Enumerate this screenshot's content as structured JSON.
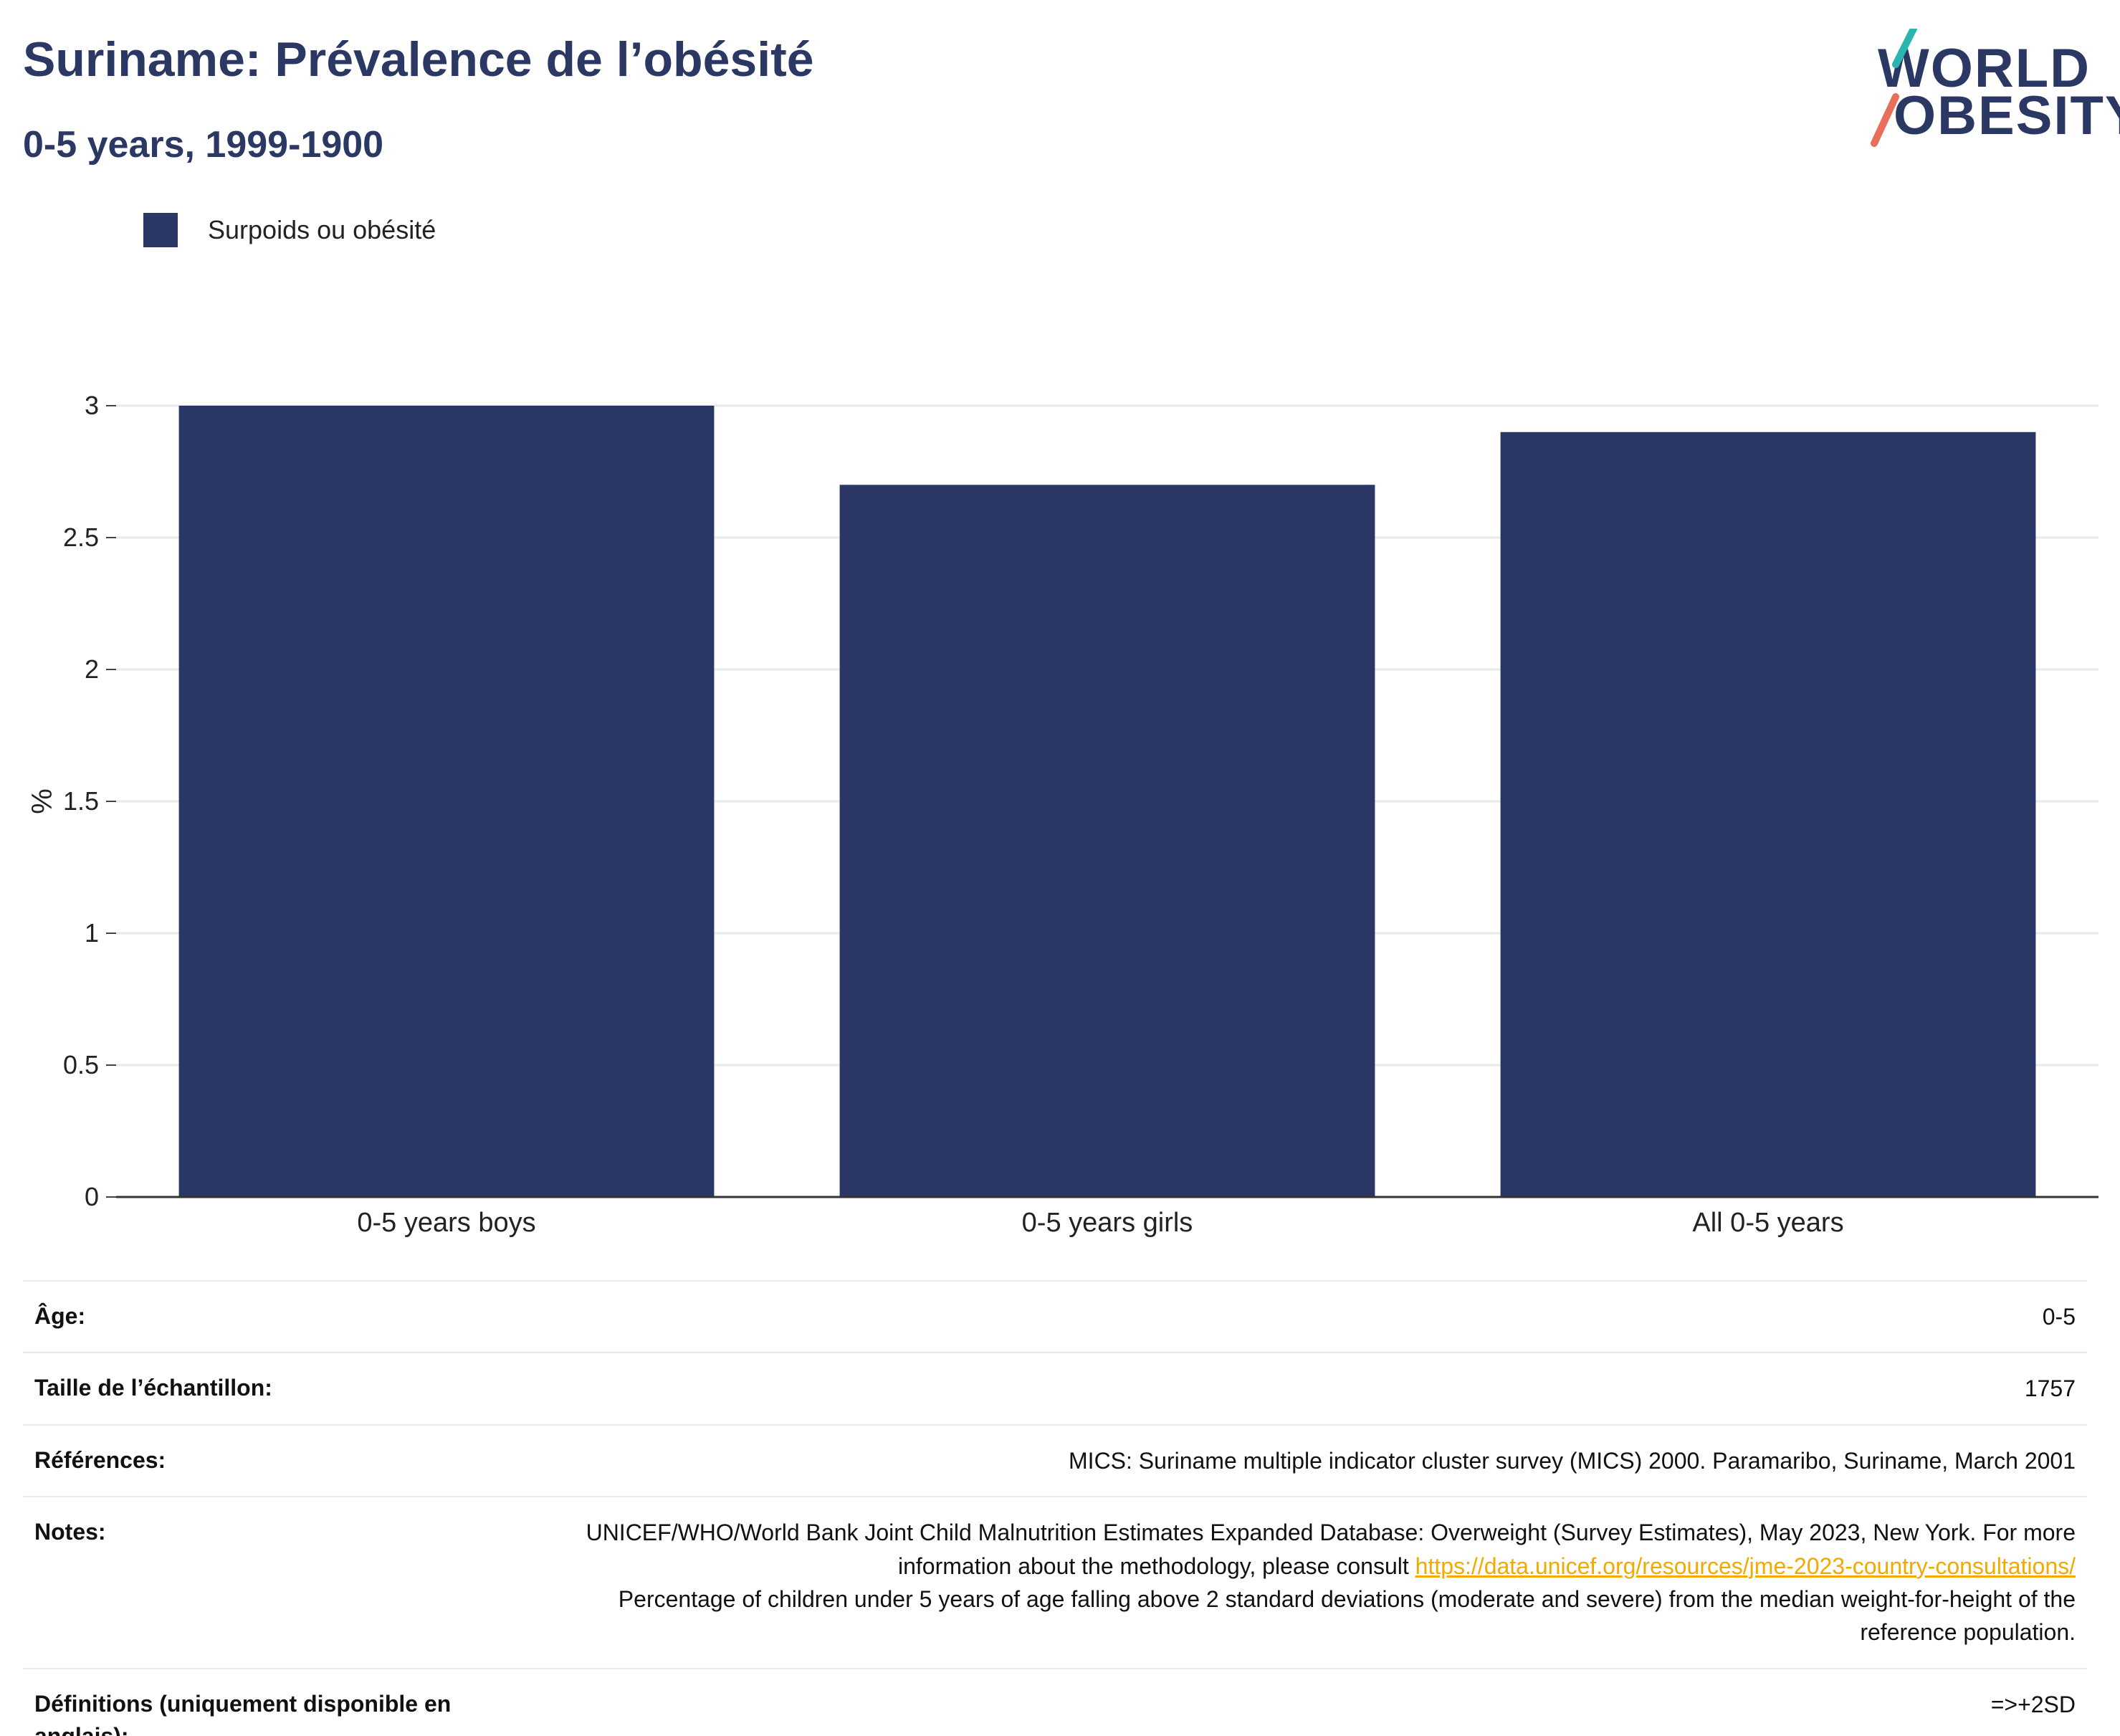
{
  "header": {
    "title": "Suriname: Prévalence de l’obésité",
    "subtitle": "0-5 years, 1999-1900"
  },
  "logo": {
    "line1": "WORLD",
    "line2": "OBESITY",
    "accent_teal": "#2bb5b0",
    "accent_coral": "#e8705a"
  },
  "legend": {
    "label": "Surpoids ou obésité",
    "color": "#2a3764"
  },
  "chart_data": {
    "type": "bar",
    "categories": [
      "0-5 years boys",
      "0-5 years girls",
      "All 0-5 years"
    ],
    "series": [
      {
        "name": "Surpoids ou obésité",
        "values": [
          3.0,
          2.7,
          2.9
        ],
        "color": "#2a3764"
      }
    ],
    "ylabel": "%",
    "ylim": [
      0,
      3
    ],
    "yticks": [
      "0",
      "0.5",
      "1",
      "1.5",
      "2",
      "2.5",
      "3"
    ],
    "grid": true
  },
  "table": {
    "age": {
      "label": "Âge:",
      "value": "0-5"
    },
    "sample": {
      "label": "Taille de l’échantillon:",
      "value": "1757"
    },
    "references": {
      "label": "Références:",
      "value": "MICS: Suriname multiple indicator cluster survey (MICS) 2000. Paramaribo, Suriname, March 2001"
    },
    "notes": {
      "label": "Notes:",
      "text1": "UNICEF/WHO/World Bank Joint Child Malnutrition Estimates Expanded Database: Overweight (Survey Estimates), May 2023, New York. For more information about the methodology, please consult ",
      "link": "https://data.unicef.org/resources/jme-2023-country-consultations/",
      "text2": "Percentage of children under 5 years of age falling above 2 standard deviations (moderate and severe) from the median weight-for-height of the reference population."
    },
    "definitions": {
      "label": "Définitions (uniquement disponible en anglais):",
      "value": "=>+2SD"
    }
  }
}
